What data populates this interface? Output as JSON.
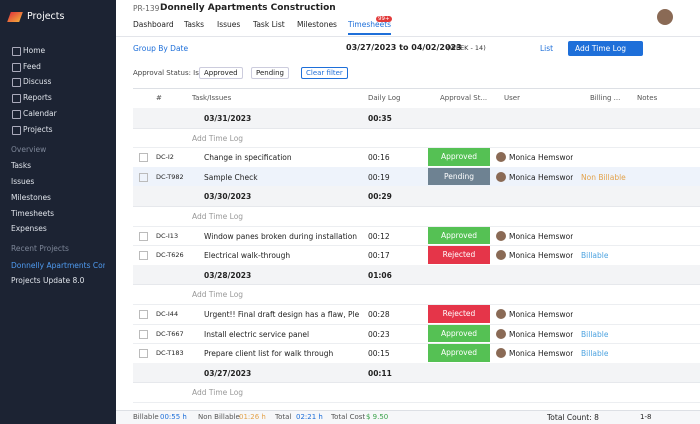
{
  "sidebar": {
    "brand": "Projects",
    "nav": [
      "Home",
      "Feed",
      "Discuss",
      "Reports",
      "Calendar",
      "Projects"
    ],
    "overview_label": "Overview",
    "overview": [
      "Tasks",
      "Issues",
      "Milestones",
      "Timesheets",
      "Expenses"
    ],
    "recent_label": "Recent Projects",
    "recent": [
      "Donnelly Apartments Con",
      "Projects Update 8.0"
    ]
  },
  "header": {
    "project_id": "PR-139",
    "project_name": "Donnelly Apartments Construction",
    "tabs": [
      "Dashboard",
      "Tasks",
      "Issues",
      "Task List",
      "Milestones",
      "Timesheets"
    ],
    "badge": "99+"
  },
  "toolbar": {
    "group_by": "Group By Date",
    "date_range": "03/27/2023 to 04/02/2023",
    "week": "(WEEK - 14)",
    "view": "List",
    "add_button": "Add Time Log"
  },
  "filter": {
    "label": "Approval Status: Is",
    "chips": [
      "Approved",
      "Pending"
    ],
    "clear": "Clear filter"
  },
  "table": {
    "columns": [
      "#",
      "Task/Issues",
      "Daily Log",
      "Approval St...",
      "User",
      "Billing ...",
      "Notes"
    ],
    "add_label": "Add Time Log",
    "groups": [
      {
        "date": "03/31/2023",
        "total": "00:35",
        "rows": [
          {
            "id": "DC-I2",
            "task": "Change in specification",
            "log": "00:16",
            "status": "Approved",
            "user": "Monica Hemsworth"
          },
          {
            "id": "DC-T982",
            "task": "Sample Check",
            "log": "00:19",
            "status": "Pending",
            "user": "Monica Hemsworth",
            "billing": "Non Billable"
          }
        ]
      },
      {
        "date": "03/30/2023",
        "total": "00:29",
        "rows": [
          {
            "id": "DC-I13",
            "task": "Window panes broken during installation",
            "log": "00:12",
            "status": "Approved",
            "user": "Monica Hemsworth"
          },
          {
            "id": "DC-T626",
            "task": "Electrical walk-through",
            "log": "00:17",
            "status": "Rejected",
            "user": "Monica Hemsworth",
            "billing": "Billable"
          }
        ]
      },
      {
        "date": "03/28/2023",
        "total": "01:06",
        "rows": [
          {
            "id": "DC-I44",
            "task": "Urgent!! Final draft design has a flaw, Pleas...",
            "log": "00:28",
            "status": "Rejected",
            "user": "Monica Hemsworth"
          },
          {
            "id": "DC-T667",
            "task": "Install electric service panel",
            "log": "00:23",
            "status": "Approved",
            "user": "Monica Hemsworth",
            "billing": "Billable"
          },
          {
            "id": "DC-T183",
            "task": "Prepare client list for walk through",
            "log": "00:15",
            "status": "Approved",
            "user": "Monica Hemsworth",
            "billing": "Billable"
          }
        ]
      },
      {
        "date": "03/27/2023",
        "total": "00:11",
        "rows": []
      }
    ]
  },
  "footer": {
    "billable_label": "Billable",
    "billable": "00:55 h",
    "non_billable_label": "Non Billable",
    "non_billable": "01:26 h",
    "total_label": "Total",
    "total": "02:21 h",
    "cost_label": "Total Cost",
    "cost": "$ 9.50",
    "count": "Total Count: 8",
    "page": "1-8"
  }
}
